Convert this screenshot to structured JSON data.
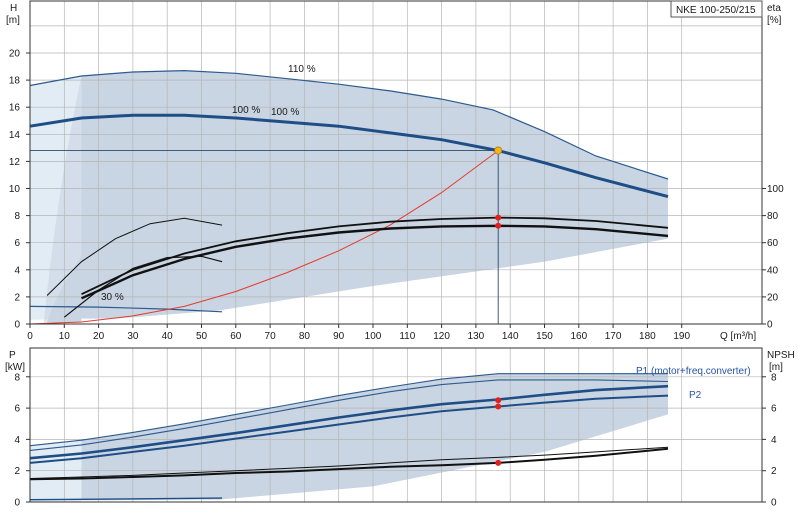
{
  "model_label": "NKE 100-250/215",
  "colors": {
    "grid": "#b5b5b5",
    "region_fill": "#c9d5e2",
    "region_light": "#e2ecf5",
    "main_curve": "#1f4e87",
    "thin_curve": "#2c5a8f",
    "black_curve": "#111111",
    "system_curve": "#e53b2c",
    "point_red": "#e3201b",
    "point_yellow": "#f3b51a",
    "blue_text": "#2754a3"
  },
  "chart_data": [
    {
      "type": "line",
      "name": "head-efficiency",
      "ylabel_left": "H",
      "ylabel_left_unit": "[m]",
      "ylabel_right": "eta",
      "ylabel_right_unit": "[%]",
      "xlabel": "Q [m³/h]",
      "xlim": [
        0,
        195
      ],
      "ylim_left": [
        0,
        22
      ],
      "ylim_right": [
        0,
        100
      ],
      "x_ticks": [
        0,
        10,
        20,
        30,
        40,
        50,
        60,
        70,
        80,
        90,
        100,
        110,
        120,
        130,
        140,
        150,
        160,
        170,
        180,
        190
      ],
      "y_ticks_left": [
        0,
        2,
        4,
        6,
        8,
        10,
        12,
        14,
        16,
        18,
        20
      ],
      "y_ticks_right": [
        0,
        20,
        40,
        60,
        80,
        100
      ],
      "grid": true,
      "annotations": [
        "110 %",
        "100 %",
        "100 %",
        "30 %"
      ],
      "operating_point": {
        "x": 136.5,
        "y": 12.8
      },
      "efficiency_points": [
        {
          "x": 136.5,
          "y": 78.5
        },
        {
          "x": 136.5,
          "y": 72.5
        }
      ],
      "series": [
        {
          "role": "head-110",
          "x": [
            0,
            15,
            30,
            45,
            60,
            75,
            90,
            105,
            120,
            135,
            150,
            165,
            186
          ],
          "y": [
            17.6,
            18.3,
            18.6,
            18.7,
            18.5,
            18.1,
            17.7,
            17.2,
            16.6,
            15.8,
            14.2,
            12.4,
            10.7
          ]
        },
        {
          "role": "head-100",
          "x": [
            0,
            15,
            30,
            45,
            60,
            75,
            90,
            105,
            120,
            136.5,
            150,
            165,
            186
          ],
          "y": [
            14.6,
            15.2,
            15.4,
            15.4,
            15.2,
            14.9,
            14.6,
            14.1,
            13.6,
            12.8,
            11.9,
            10.8,
            9.4
          ]
        },
        {
          "role": "head-30",
          "x": [
            0,
            20,
            40,
            56
          ],
          "y": [
            1.3,
            1.25,
            1.1,
            0.9
          ]
        },
        {
          "role": "system-curve",
          "x": [
            0,
            15,
            30,
            45,
            60,
            75,
            90,
            105,
            120,
            136.5
          ],
          "y": [
            0,
            0.15,
            0.6,
            1.3,
            2.4,
            3.8,
            5.4,
            7.3,
            9.7,
            12.8
          ]
        },
        {
          "role": "eta-110",
          "x": [
            15,
            30,
            45,
            60,
            75,
            90,
            105,
            120,
            136.5,
            150,
            165,
            186
          ],
          "y": [
            22,
            40,
            52,
            61,
            67,
            72,
            75.5,
            77.5,
            78.5,
            78,
            76,
            71
          ]
        },
        {
          "role": "eta-100",
          "x": [
            15,
            30,
            45,
            60,
            75,
            90,
            105,
            120,
            136.5,
            150,
            165,
            186
          ],
          "y": [
            19,
            36,
            48,
            57,
            63,
            67.5,
            70.5,
            72,
            72.5,
            72,
            70,
            65
          ]
        },
        {
          "role": "eta-30",
          "x": [
            5,
            15,
            25,
            35,
            45,
            56
          ],
          "y": [
            21,
            46,
            63,
            74,
            78,
            73
          ]
        },
        {
          "role": "eta-low",
          "x": [
            10,
            20,
            30,
            40,
            50,
            56
          ],
          "y": [
            5,
            25,
            41,
            49,
            50,
            46
          ]
        }
      ]
    },
    {
      "type": "line",
      "name": "power-npsh",
      "ylabel_left": "P",
      "ylabel_left_unit": "[kW]",
      "ylabel_right": "NPSH",
      "ylabel_right_unit": "[m]",
      "xlim": [
        0,
        195
      ],
      "ylim_left": [
        0,
        9
      ],
      "ylim_right": [
        0,
        9
      ],
      "y_ticks_left": [
        0,
        2,
        4,
        6,
        8
      ],
      "y_ticks_right": [
        0,
        2,
        4,
        6,
        8
      ],
      "grid": true,
      "legend": [
        "P1 (motor+freq.converter)",
        "P2"
      ],
      "points": [
        {
          "x": 136.5,
          "y": 6.5
        },
        {
          "x": 136.5,
          "y": 6.1
        },
        {
          "x": 136.5,
          "y": 2.5
        }
      ],
      "series": [
        {
          "role": "p1-110",
          "x": [
            0,
            15,
            30,
            45,
            60,
            75,
            90,
            105,
            120,
            136.5,
            150,
            165,
            186
          ],
          "y": [
            3.6,
            3.95,
            4.45,
            5.0,
            5.6,
            6.2,
            6.8,
            7.35,
            7.85,
            8.2,
            8.2,
            8.2,
            8.2
          ]
        },
        {
          "role": "p2-110",
          "x": [
            0,
            15,
            30,
            45,
            60,
            75,
            90,
            105,
            120,
            136.5,
            150,
            165,
            186
          ],
          "y": [
            3.3,
            3.65,
            4.15,
            4.7,
            5.3,
            5.9,
            6.5,
            7.05,
            7.5,
            7.8,
            7.8,
            7.8,
            7.7
          ]
        },
        {
          "role": "p1-100",
          "x": [
            0,
            15,
            30,
            45,
            60,
            75,
            90,
            105,
            120,
            136.5,
            150,
            165,
            186
          ],
          "y": [
            2.8,
            3.1,
            3.5,
            3.95,
            4.4,
            4.9,
            5.4,
            5.85,
            6.25,
            6.55,
            6.85,
            7.15,
            7.4
          ]
        },
        {
          "role": "p2-100",
          "x": [
            0,
            15,
            30,
            45,
            60,
            75,
            90,
            105,
            120,
            136.5,
            150,
            165,
            186
          ],
          "y": [
            2.5,
            2.8,
            3.2,
            3.6,
            4.05,
            4.5,
            4.95,
            5.4,
            5.8,
            6.1,
            6.35,
            6.6,
            6.8
          ]
        },
        {
          "role": "npsh-110",
          "x": [
            0,
            15,
            30,
            45,
            60,
            75,
            90,
            105,
            120,
            136.5,
            150,
            165,
            186
          ],
          "y": [
            1.5,
            1.6,
            1.7,
            1.85,
            2.0,
            2.15,
            2.3,
            2.5,
            2.7,
            2.85,
            3.0,
            3.2,
            3.5
          ]
        },
        {
          "role": "npsh-100",
          "x": [
            0,
            15,
            30,
            45,
            60,
            75,
            90,
            105,
            120,
            136.5,
            150,
            165,
            186
          ],
          "y": [
            1.45,
            1.5,
            1.6,
            1.7,
            1.85,
            1.95,
            2.1,
            2.25,
            2.35,
            2.5,
            2.7,
            2.95,
            3.4
          ]
        },
        {
          "role": "p-30",
          "x": [
            0,
            20,
            40,
            56
          ],
          "y": [
            0.15,
            0.18,
            0.22,
            0.25
          ]
        }
      ]
    }
  ]
}
